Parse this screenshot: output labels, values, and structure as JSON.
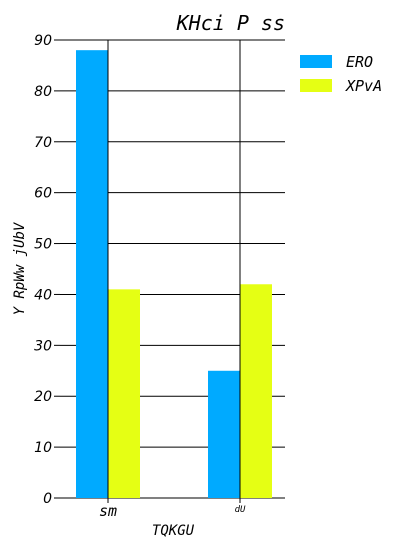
{
  "chart_data": {
    "type": "bar",
    "title": "KHci P ss",
    "xlabel": "TQKGU",
    "ylabel": "Y RpWw jUbV",
    "categories": [
      "sm",
      "dU"
    ],
    "series": [
      {
        "name": "ERO",
        "color": "#00aaff",
        "values": [
          88,
          25
        ]
      },
      {
        "name": "XPvA",
        "color": "#e5ff14",
        "values": [
          41,
          42
        ]
      }
    ],
    "ylim": [
      0,
      90
    ],
    "yticks": [
      "0",
      "10",
      "20",
      "30",
      "40",
      "50",
      "60",
      "70",
      "80",
      "90"
    ],
    "grid": true,
    "legend_position": "top-right"
  }
}
